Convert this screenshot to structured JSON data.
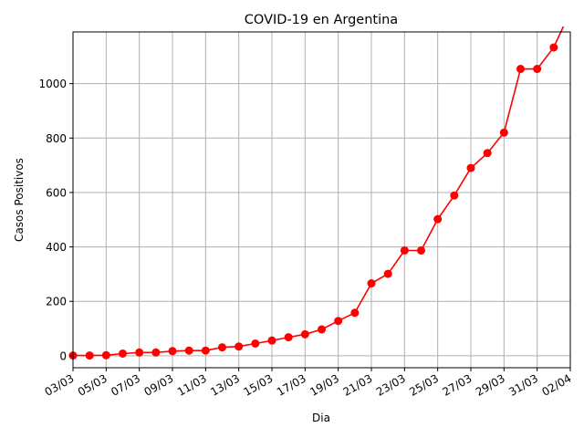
{
  "chart_data": {
    "type": "line",
    "title": "COVID-19 en Argentina",
    "xlabel": "Dia",
    "ylabel": "Casos Positivos",
    "x": [
      "03/03",
      "04/03",
      "05/03",
      "06/03",
      "07/03",
      "08/03",
      "09/03",
      "10/03",
      "11/03",
      "12/03",
      "13/03",
      "14/03",
      "15/03",
      "16/03",
      "17/03",
      "18/03",
      "19/03",
      "20/03",
      "21/03",
      "22/03",
      "23/03",
      "24/03",
      "25/03",
      "26/03",
      "27/03",
      "28/03",
      "29/03",
      "30/03",
      "31/03",
      "01/04",
      "02/04"
    ],
    "x_tick_labels": [
      "03/03",
      "05/03",
      "07/03",
      "09/03",
      "11/03",
      "13/03",
      "15/03",
      "17/03",
      "19/03",
      "21/03",
      "23/03",
      "25/03",
      "27/03",
      "29/03",
      "31/03",
      "02/04"
    ],
    "series": [
      {
        "values": [
          1,
          1,
          2,
          8,
          12,
          12,
          17,
          19,
          19,
          31,
          34,
          45,
          56,
          68,
          79,
          97,
          128,
          158,
          266,
          301,
          387,
          387,
          502,
          589,
          690,
          745,
          820,
          1054,
          1054,
          1133,
          1265
        ]
      }
    ],
    "yticks": [
      0,
      200,
      400,
      600,
      800,
      1000
    ],
    "ylim": [
      -44,
      1190
    ],
    "grid": true,
    "legend": "none",
    "colors": {
      "line": "#ff0000",
      "marker": "#ff0000",
      "grid": "#b0b0b0"
    }
  }
}
